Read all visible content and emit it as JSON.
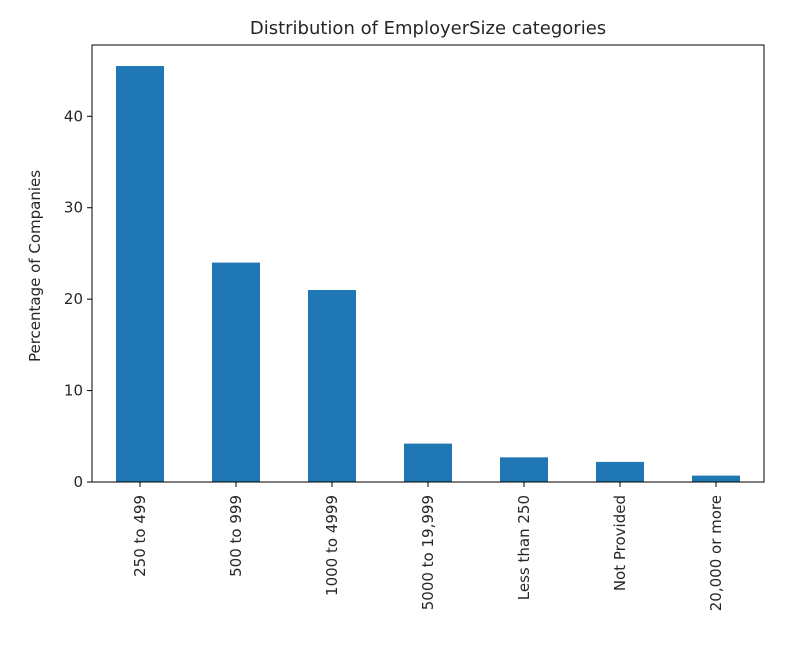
{
  "chart_data": {
    "type": "bar",
    "title": "Distribution of EmployerSize categories",
    "xlabel": "",
    "ylabel": "Percentage of Companies",
    "categories": [
      "250 to 499",
      "500 to 999",
      "1000 to 4999",
      "5000 to 19,999",
      "Less than 250",
      "Not Provided",
      "20,000 or more"
    ],
    "values": [
      45.5,
      24.0,
      21.0,
      4.2,
      2.7,
      2.2,
      0.7
    ],
    "ylim": [
      0,
      47.8
    ],
    "yticks": [
      0,
      10,
      20,
      30,
      40
    ],
    "ytick_labels": [
      "0",
      "10",
      "20",
      "30",
      "40"
    ],
    "grid": false,
    "legend": "none",
    "colors": {
      "bar": "#1f77b4",
      "axis": "#000000",
      "text": "#262626"
    }
  }
}
